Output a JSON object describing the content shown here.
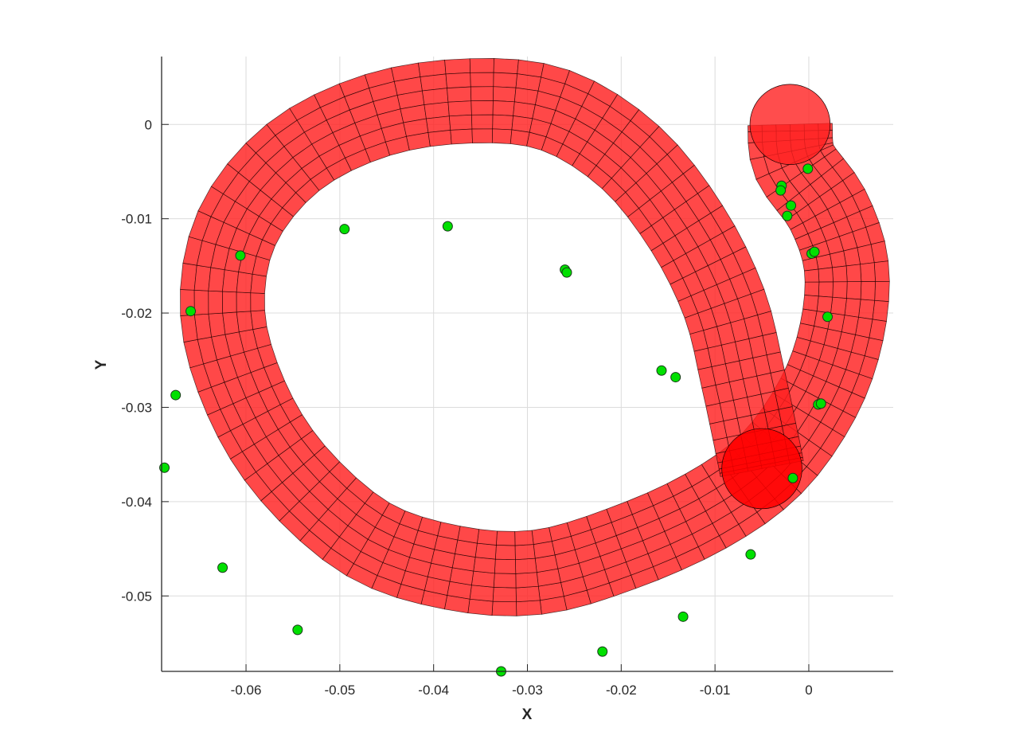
{
  "chart_data": {
    "type": "scatter",
    "title": "",
    "xlabel": "X",
    "ylabel": "Y",
    "xlim": [
      -0.069,
      0.009
    ],
    "ylim": [
      -0.058,
      0.0072
    ],
    "grid": true,
    "x_ticks": [
      -0.06,
      -0.05,
      -0.04,
      -0.03,
      -0.02,
      -0.01,
      0
    ],
    "x_tick_labels": [
      "-0.06",
      "-0.05",
      "-0.04",
      "-0.03",
      "-0.02",
      "-0.01",
      "0"
    ],
    "y_ticks": [
      0,
      -0.01,
      -0.02,
      -0.03,
      -0.04,
      -0.05
    ],
    "y_tick_labels": [
      "0",
      "-0.01",
      "-0.02",
      "-0.03",
      "-0.04",
      "-0.05"
    ],
    "tube": {
      "color": "#ff2020",
      "centerline": [
        [
          -0.002,
          0.0
        ],
        [
          -0.0015,
          -0.004
        ],
        [
          0.002,
          -0.009
        ],
        [
          0.004,
          -0.015
        ],
        [
          0.0035,
          -0.022
        ],
        [
          0.001,
          -0.029
        ],
        [
          -0.004,
          -0.036
        ],
        [
          -0.011,
          -0.041
        ],
        [
          -0.02,
          -0.045
        ],
        [
          -0.029,
          -0.0475
        ],
        [
          -0.038,
          -0.047
        ],
        [
          -0.047,
          -0.044
        ],
        [
          -0.055,
          -0.037
        ],
        [
          -0.06,
          -0.029
        ],
        [
          -0.0625,
          -0.02
        ],
        [
          -0.061,
          -0.011
        ],
        [
          -0.055,
          -0.0035
        ],
        [
          -0.046,
          0.001
        ],
        [
          -0.036,
          0.0025
        ],
        [
          -0.027,
          0.0015
        ],
        [
          -0.019,
          -0.0035
        ],
        [
          -0.013,
          -0.011
        ],
        [
          -0.009,
          -0.019
        ],
        [
          -0.007,
          -0.027
        ],
        [
          -0.0055,
          -0.034
        ],
        [
          -0.005,
          -0.0365
        ]
      ],
      "radius": 0.0045
    },
    "series": [
      {
        "marker": "circle",
        "color": "#00e000",
        "points": [
          [
            -0.0687,
            -0.0364
          ],
          [
            -0.0675,
            -0.0287
          ],
          [
            -0.0659,
            -0.0198
          ],
          [
            -0.0606,
            -0.0139
          ],
          [
            -0.0625,
            -0.047
          ],
          [
            -0.0545,
            -0.0536
          ],
          [
            -0.0495,
            -0.0111
          ],
          [
            -0.0385,
            -0.0108
          ],
          [
            -0.0328,
            -0.058
          ],
          [
            -0.026,
            -0.0154
          ],
          [
            -0.0258,
            -0.0157
          ],
          [
            -0.022,
            -0.0559
          ],
          [
            -0.0157,
            -0.0261
          ],
          [
            -0.0142,
            -0.0268
          ],
          [
            -0.0134,
            -0.0522
          ],
          [
            -0.0062,
            -0.0456
          ],
          [
            -0.0029,
            -0.0065
          ],
          [
            -0.003,
            -0.007
          ],
          [
            -0.0019,
            -0.0086
          ],
          [
            -0.0023,
            -0.0097
          ],
          [
            -0.0001,
            -0.0047
          ],
          [
            0.0003,
            -0.0137
          ],
          [
            0.0006,
            -0.0135
          ],
          [
            0.002,
            -0.0204
          ],
          [
            0.001,
            -0.0297
          ],
          [
            0.0013,
            -0.0296
          ],
          [
            -0.0017,
            -0.0375
          ]
        ]
      }
    ]
  }
}
